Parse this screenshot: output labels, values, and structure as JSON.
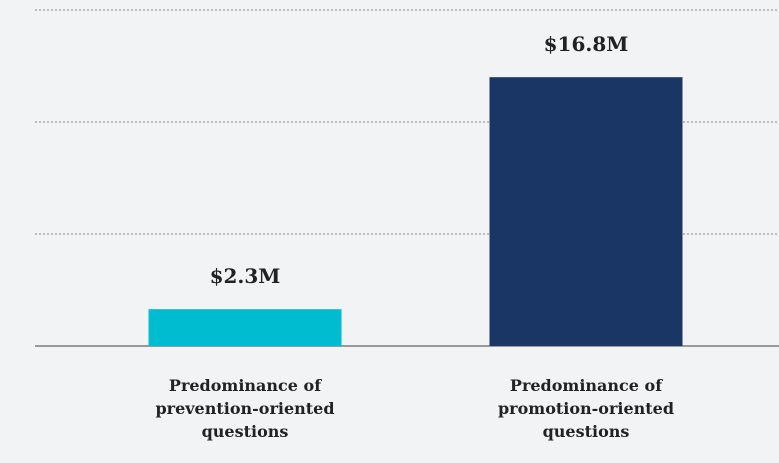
{
  "chart_data": {
    "type": "bar",
    "categories": [
      "Predominance of prevention-oriented questions",
      "Predominance of promotion-oriented questions"
    ],
    "series": [
      {
        "colors": [
          "#00bcd1",
          "#1a3664"
        ],
        "values": [
          2300000,
          16800000
        ],
        "value_labels": [
          "$2.3M",
          "$16.8M"
        ]
      }
    ],
    "ylim": [
      0,
      21000000
    ],
    "yticks": [
      0,
      7000000,
      14000000,
      21000000
    ],
    "grid": true
  }
}
